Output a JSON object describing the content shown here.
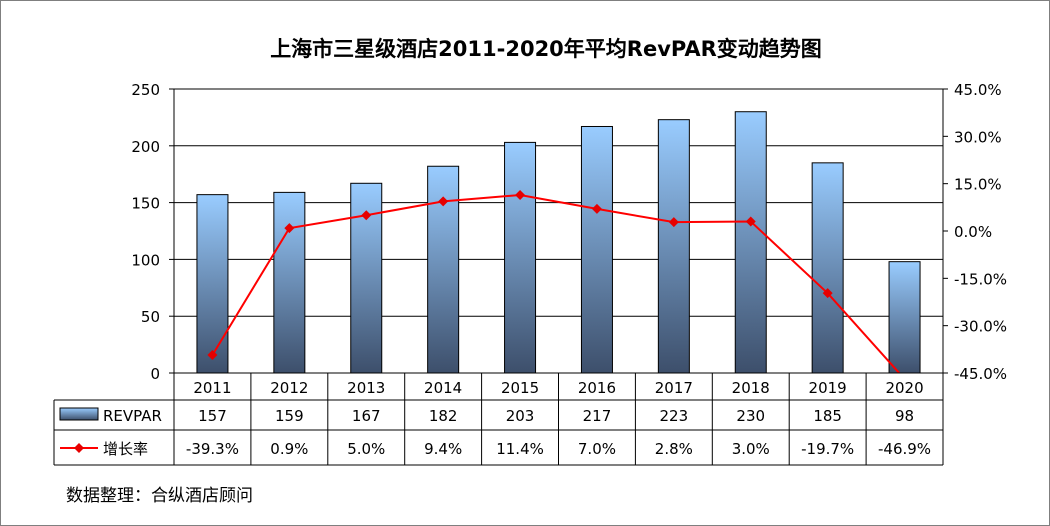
{
  "chart_data": {
    "type": "bar",
    "title": "上海市三星级酒店2011-2020年平均RevPAR变动趋势图",
    "categories": [
      "2011",
      "2012",
      "2013",
      "2014",
      "2015",
      "2016",
      "2017",
      "2018",
      "2019",
      "2020"
    ],
    "series": [
      {
        "name": "REVPAR",
        "type": "bar",
        "axis": "left",
        "values": [
          157,
          159,
          167,
          182,
          203,
          217,
          223,
          230,
          185,
          98
        ],
        "labels": [
          "157",
          "159",
          "167",
          "182",
          "203",
          "217",
          "223",
          "230",
          "185",
          "98"
        ]
      },
      {
        "name": "增长率",
        "type": "line",
        "axis": "right",
        "values": [
          -39.3,
          0.9,
          5.0,
          9.4,
          11.4,
          7.0,
          2.8,
          3.0,
          -19.7,
          -46.9
        ],
        "labels": [
          "-39.3%",
          "0.9%",
          "5.0%",
          "9.4%",
          "11.4%",
          "7.0%",
          "2.8%",
          "3.0%",
          "-19.7%",
          "-46.9%"
        ]
      }
    ],
    "y_left": {
      "range": [
        0,
        250
      ],
      "ticks": [
        "0",
        "50",
        "100",
        "150",
        "200",
        "250"
      ]
    },
    "y_right": {
      "range": [
        -45,
        45
      ],
      "ticks": [
        "-45.0%",
        "-30.0%",
        "-15.0%",
        "0.0%",
        "15.0%",
        "30.0%",
        "45.0%"
      ]
    },
    "grid": true,
    "legend": "data-table",
    "colors": {
      "bar_top": "#99ccff",
      "bar_bottom": "#3d4f6b",
      "line": "#ff0000",
      "marker": "#e60000"
    },
    "source_note": "数据整理：合纵酒店顾问"
  }
}
